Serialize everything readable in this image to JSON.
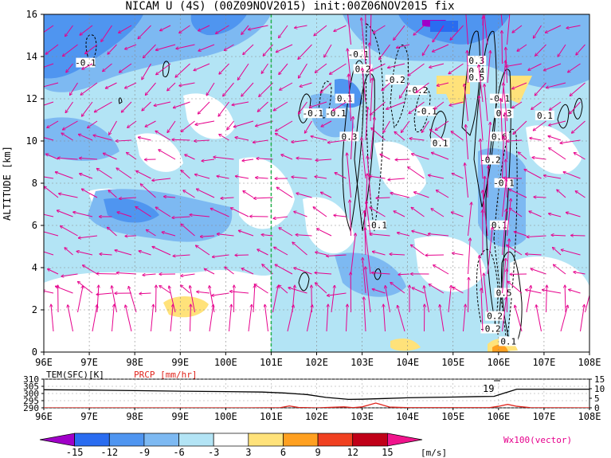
{
  "chart_data": [
    {
      "type": "heatmap",
      "title": "NICAM U (4S) (00Z09NOV2015) init:00Z06NOV2015 fix",
      "ylabel": "ALTITUDE [km]",
      "xlabel": "",
      "x_ticks": [
        "96E",
        "97E",
        "98E",
        "99E",
        "100E",
        "101E",
        "102E",
        "103E",
        "104E",
        "105E",
        "106E",
        "107E",
        "108E"
      ],
      "y_ticks": [
        "0",
        "2",
        "4",
        "6",
        "8",
        "10",
        "12",
        "14",
        "16"
      ],
      "xlim": [
        96,
        108
      ],
      "ylim": [
        0,
        16
      ],
      "grid": true,
      "reference_line_lon": 101,
      "color_levels": [
        "-15",
        "-12",
        "-9",
        "-6",
        "-3",
        "3",
        "6",
        "9",
        "12",
        "15"
      ],
      "color_units": "[m/s]",
      "colors": [
        "#a000c8",
        "#2a6cf0",
        "#4f95f0",
        "#7db9f2",
        "#b3e4f5",
        "#ffffff",
        "#ffe27a",
        "#ffa020",
        "#f04020",
        "#c00018",
        "#f0148c"
      ],
      "vector_label": "Wx100(vector)",
      "vector_color": "#e6008c",
      "contour_labels": [
        {
          "lon": 96.9,
          "alt": 13.6,
          "text": "-0.1"
        },
        {
          "lon": 101.9,
          "alt": 11.2,
          "text": "-0.1"
        },
        {
          "lon": 102.4,
          "alt": 11.2,
          "text": "-0.1"
        },
        {
          "lon": 102.6,
          "alt": 11.9,
          "text": "0.1"
        },
        {
          "lon": 102.7,
          "alt": 10.1,
          "text": "0.3"
        },
        {
          "lon": 102.9,
          "alt": 14.0,
          "text": "-0.1"
        },
        {
          "lon": 103.0,
          "alt": 13.3,
          "text": "0.2"
        },
        {
          "lon": 103.3,
          "alt": 5.9,
          "text": "-0.1"
        },
        {
          "lon": 103.7,
          "alt": 12.8,
          "text": "-0.2"
        },
        {
          "lon": 104.2,
          "alt": 12.3,
          "text": "-0.2"
        },
        {
          "lon": 104.4,
          "alt": 11.3,
          "text": "-0.1"
        },
        {
          "lon": 104.7,
          "alt": 9.8,
          "text": "0.1"
        },
        {
          "lon": 105.5,
          "alt": 13.7,
          "text": "0.3"
        },
        {
          "lon": 105.5,
          "alt": 13.2,
          "text": "0.4"
        },
        {
          "lon": 105.5,
          "alt": 12.9,
          "text": "0.5"
        },
        {
          "lon": 105.8,
          "alt": 9.0,
          "text": "-0.2"
        },
        {
          "lon": 106.0,
          "alt": 11.9,
          "text": "-0.1"
        },
        {
          "lon": 106.1,
          "alt": 11.2,
          "text": "0.3"
        },
        {
          "lon": 106.0,
          "alt": 10.1,
          "text": "0.6"
        },
        {
          "lon": 106.1,
          "alt": 7.9,
          "text": "-0.1"
        },
        {
          "lon": 106.0,
          "alt": 5.9,
          "text": "0.1"
        },
        {
          "lon": 106.1,
          "alt": 2.7,
          "text": "0.5"
        },
        {
          "lon": 105.9,
          "alt": 1.6,
          "text": "0.2"
        },
        {
          "lon": 105.8,
          "alt": 1.0,
          "text": "-0.2"
        },
        {
          "lon": 106.2,
          "alt": 0.4,
          "text": "0.1"
        },
        {
          "lon": 107.0,
          "alt": 11.1,
          "text": "0.1"
        }
      ]
    },
    {
      "type": "line",
      "title": "",
      "x_ticks": [
        "96E",
        "97E",
        "98E",
        "99E",
        "100E",
        "101E",
        "102E",
        "103E",
        "104E",
        "105E",
        "106E",
        "107E",
        "108E"
      ],
      "xlim": [
        96,
        108
      ],
      "series": [
        {
          "name": "TEM(SFC)[K]",
          "axis": "left",
          "color": "#000000",
          "y_ticks": [
            "290",
            "295",
            "300",
            "305",
            "310"
          ],
          "ylim": [
            290,
            310
          ],
          "x": [
            96,
            96.5,
            97,
            98,
            99,
            100,
            100.8,
            101.3,
            101.8,
            102.2,
            102.7,
            103.0,
            103.5,
            104.0,
            104.5,
            105.0,
            105.5,
            105.9,
            106.2,
            106.4,
            107,
            108
          ],
          "values": [
            302.6,
            302.5,
            302.4,
            302,
            301.6,
            301.3,
            301,
            300.3,
            299.2,
            297.3,
            295.9,
            296.0,
            296.5,
            297.0,
            297.3,
            297.5,
            297.8,
            298.0,
            301,
            303,
            303,
            303
          ]
        },
        {
          "name": "PRCP [mm/hr]",
          "axis": "right",
          "color": "#e0241c",
          "y_ticks": [
            "0",
            "5",
            "10",
            "15"
          ],
          "ylim": [
            0,
            15
          ],
          "x": [
            96,
            100.5,
            101.2,
            101.4,
            101.6,
            102,
            102.6,
            102.8,
            103.0,
            103.3,
            103.4,
            103.6,
            104,
            105.8,
            106.0,
            106.2,
            106.4,
            106.7,
            108
          ],
          "values": [
            0,
            0,
            0.1,
            1.0,
            0.2,
            0,
            0.5,
            0.1,
            0.5,
            2.5,
            1.8,
            0.4,
            0.1,
            0.1,
            0.8,
            1.8,
            0.8,
            0.1,
            0
          ]
        }
      ],
      "annotation": "19"
    }
  ]
}
